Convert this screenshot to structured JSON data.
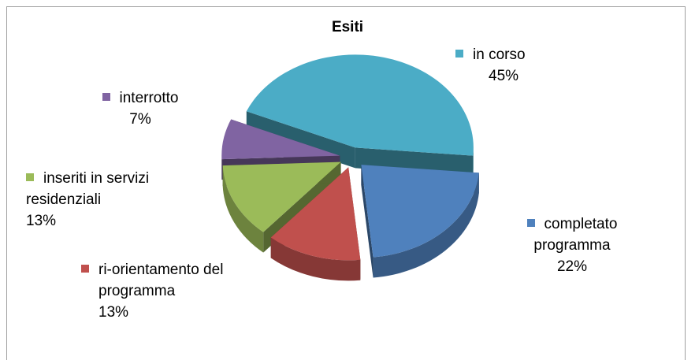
{
  "chart_data": {
    "type": "pie",
    "title": "Esiti",
    "categories": [
      "in corso",
      "completato programma",
      "ri-orientamento del programma",
      "inseriti in servizi residenziali",
      "interrotto"
    ],
    "values": [
      45,
      22,
      13,
      13,
      7
    ],
    "value_labels": [
      "45%",
      "22%",
      "13%",
      "13%",
      "7%"
    ],
    "colors": [
      "#4bacc6",
      "#4f81bd",
      "#c0504d",
      "#9bbb59",
      "#8064a2"
    ]
  }
}
